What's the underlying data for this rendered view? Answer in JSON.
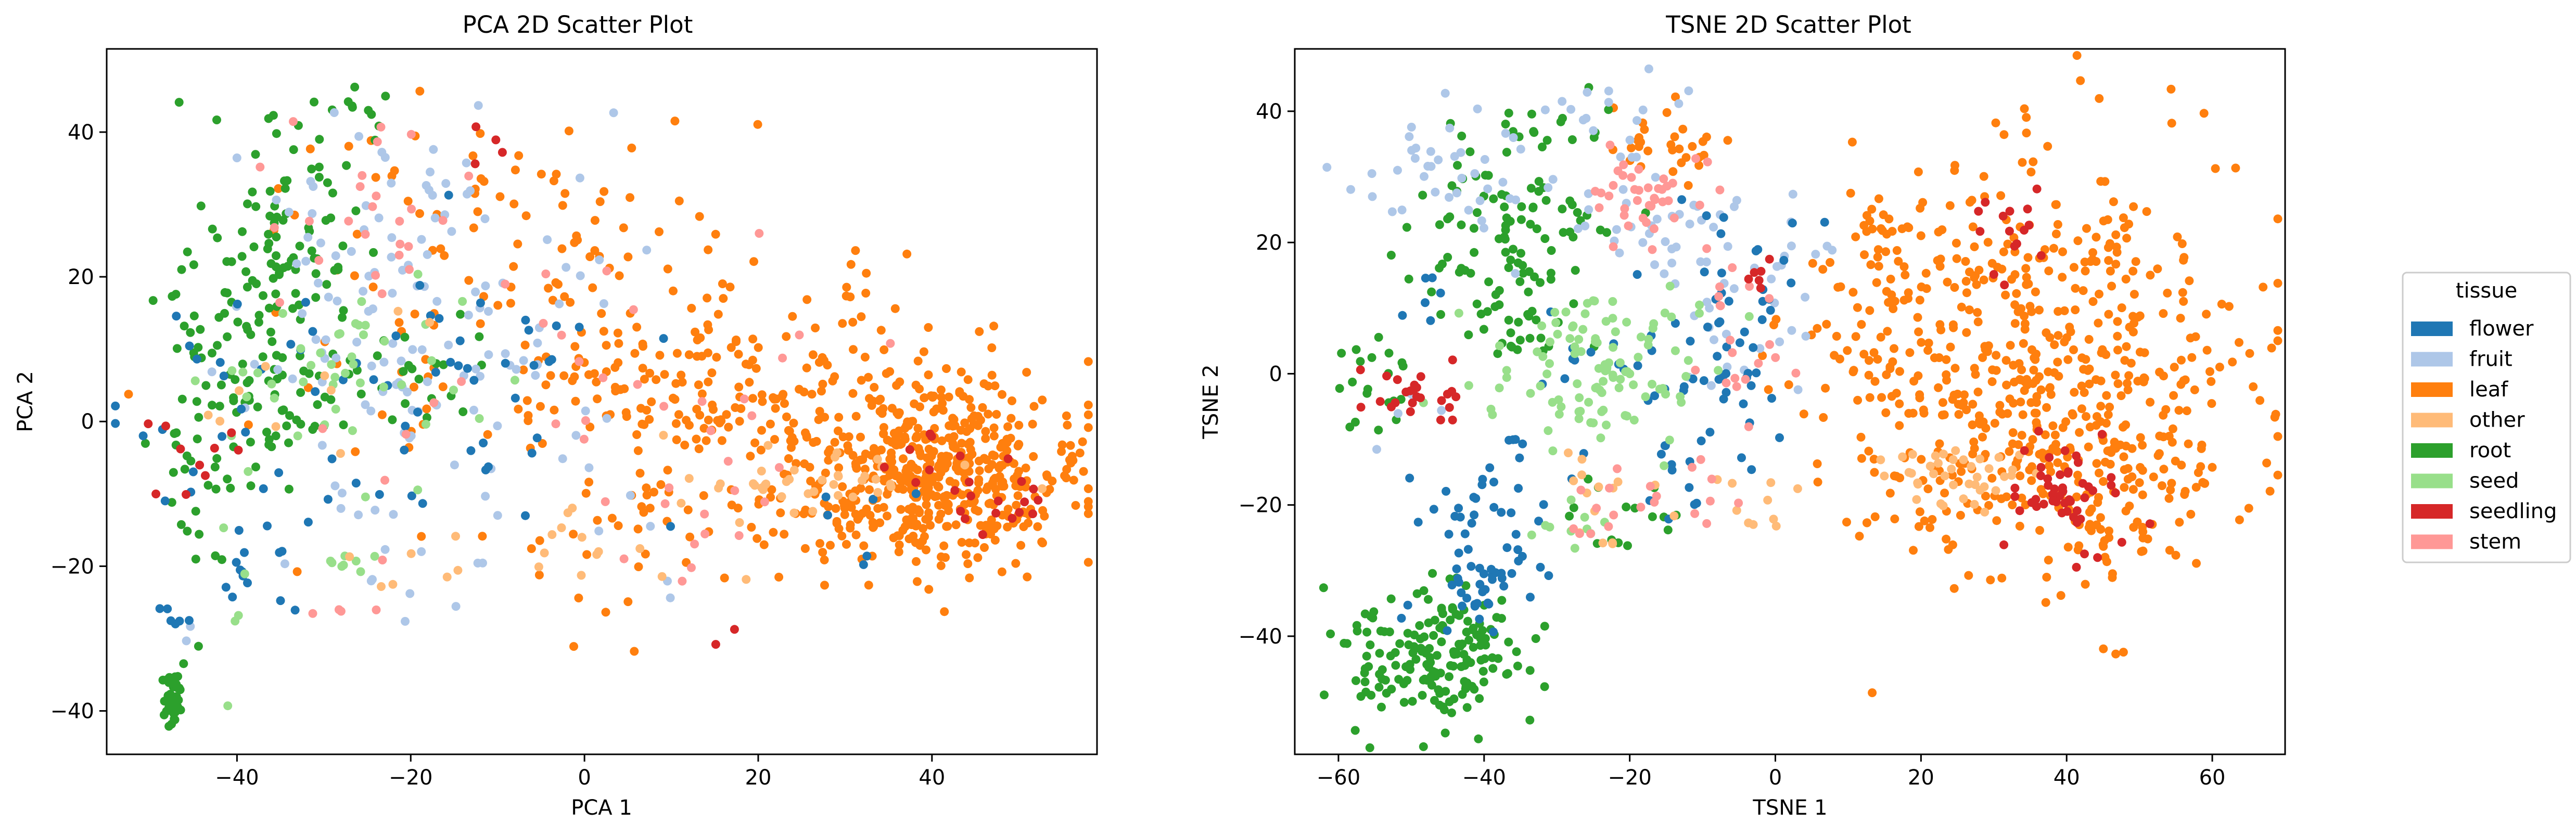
{
  "chart_data": [
    {
      "type": "scatter",
      "title": "PCA 2D Scatter Plot",
      "xlabel": "PCA 1",
      "ylabel": "PCA 2",
      "xlim": [
        -55,
        59
      ],
      "ylim": [
        -46,
        51.5
      ],
      "xticks": [
        -40,
        -20,
        0,
        20,
        40
      ],
      "yticks": [
        -40,
        -20,
        0,
        20,
        40
      ],
      "xtick_labels": [
        "−40",
        "−20",
        "0",
        "20",
        "40"
      ],
      "ytick_labels": [
        "−40",
        "−20",
        "0",
        "20",
        "40"
      ],
      "grid": false,
      "series": [
        {
          "name": "flower",
          "clusters": [
            [
              -40,
              -20,
              2.5,
              2.5,
              12
            ],
            [
              -47,
              -27,
              1,
              2,
              6
            ],
            [
              -25,
              0,
              12,
              10,
              40
            ],
            [
              -10,
              10,
              8,
              10,
              20
            ],
            [
              -42,
              5,
              4,
              10,
              10
            ],
            [
              40,
              -10,
              8,
              6,
              6
            ]
          ]
        },
        {
          "name": "fruit",
          "clusters": [
            [
              -25,
              28,
              7,
              10,
              45
            ],
            [
              -15,
              10,
              10,
              8,
              40
            ],
            [
              -5,
              20,
              8,
              10,
              20
            ],
            [
              -30,
              0,
              8,
              10,
              20
            ],
            [
              -20,
              -18,
              8,
              4,
              12
            ],
            [
              5,
              -5,
              8,
              6,
              10
            ],
            [
              -46,
              -29,
              1,
              1,
              2
            ]
          ]
        },
        {
          "name": "leaf",
          "clusters": [
            [
              40,
              -8,
              8,
              6,
              450
            ],
            [
              25,
              0,
              15,
              8,
              200
            ],
            [
              5,
              10,
              18,
              12,
              150
            ],
            [
              -5,
              30,
              10,
              8,
              30
            ],
            [
              10,
              -15,
              15,
              6,
              40
            ],
            [
              -20,
              30,
              8,
              8,
              15
            ]
          ]
        },
        {
          "name": "other",
          "clusters": [
            [
              25,
              -8,
              8,
              3,
              40
            ],
            [
              -5,
              -18,
              12,
              4,
              20
            ],
            [
              -30,
              3,
              8,
              5,
              10
            ]
          ]
        },
        {
          "name": "root",
          "clusters": [
            [
              -47.5,
              -38,
              0.5,
              2.5,
              40
            ],
            [
              -38,
              12,
              6,
              12,
              120
            ],
            [
              -35,
              33,
              4,
              8,
              40
            ],
            [
              -45,
              -5,
              2,
              10,
              30
            ],
            [
              -20,
              5,
              8,
              6,
              30
            ],
            [
              -25,
              42,
              4,
              2,
              8
            ]
          ]
        },
        {
          "name": "seed",
          "clusters": [
            [
              -30,
              5,
              8,
              6,
              30
            ],
            [
              -28,
              -20,
              2,
              1,
              8
            ],
            [
              -22,
              8,
              5,
              5,
              15
            ],
            [
              -40,
              -28,
              2,
              6,
              5
            ]
          ]
        },
        {
          "name": "seedling",
          "clusters": [
            [
              47,
              -12,
              3,
              2,
              15
            ],
            [
              38,
              -5,
              4,
              3,
              8
            ],
            [
              -45,
              -3,
              3,
              3,
              10
            ],
            [
              -12,
              38,
              5,
              3,
              4
            ],
            [
              15,
              -30,
              3,
              1,
              2
            ]
          ]
        },
        {
          "name": "stem",
          "clusters": [
            [
              -25,
              30,
              6,
              6,
              20
            ],
            [
              0,
              10,
              18,
              10,
              30
            ],
            [
              10,
              -10,
              10,
              8,
              15
            ],
            [
              -30,
              -25,
              5,
              2,
              5
            ]
          ]
        }
      ]
    },
    {
      "type": "scatter",
      "title": "TSNE 2D Scatter Plot",
      "xlabel": "TSNE 1",
      "ylabel": "TSNE 2",
      "xlim": [
        -66,
        70
      ],
      "ylim": [
        -58,
        49.5
      ],
      "xticks": [
        -60,
        -40,
        -20,
        0,
        20,
        40,
        60
      ],
      "yticks": [
        -40,
        -20,
        0,
        20,
        40
      ],
      "xtick_labels": [
        "−60",
        "−40",
        "−20",
        "0",
        "20",
        "40",
        "60"
      ],
      "ytick_labels": [
        "−40",
        "−20",
        "0",
        "20",
        "40"
      ],
      "grid": false,
      "series": [
        {
          "name": "flower",
          "clusters": [
            [
              -40,
              -25,
              4,
              8,
              70
            ],
            [
              -7,
              5,
              5,
              10,
              50
            ],
            [
              -22,
              0,
              8,
              6,
              20
            ],
            [
              -48,
              12,
              2,
              3,
              6
            ],
            [
              -10,
              -15,
              5,
              4,
              10
            ]
          ]
        },
        {
          "name": "fruit",
          "clusters": [
            [
              -45,
              30,
              6,
              5,
              40
            ],
            [
              -22,
              38,
              4,
              5,
              20
            ],
            [
              -12,
              20,
              10,
              5,
              40
            ],
            [
              -5,
              10,
              5,
              8,
              25
            ],
            [
              -50,
              -5,
              3,
              3,
              5
            ]
          ]
        },
        {
          "name": "leaf",
          "clusters": [
            [
              35,
              0,
              15,
              15,
              600
            ],
            [
              -15,
              35,
              4,
              3,
              30
            ],
            [
              15,
              20,
              4,
              4,
              30
            ],
            [
              48,
              -15,
              8,
              6,
              60
            ]
          ]
        },
        {
          "name": "other",
          "clusters": [
            [
              25,
              -15,
              6,
              3,
              40
            ],
            [
              -25,
              -20,
              4,
              4,
              15
            ],
            [
              -5,
              -20,
              4,
              3,
              10
            ]
          ]
        },
        {
          "name": "root",
          "clusters": [
            [
              -47,
              -43,
              6,
              5,
              180
            ],
            [
              -40,
              20,
              6,
              8,
              70
            ],
            [
              -30,
              20,
              5,
              5,
              30
            ],
            [
              -55,
              -3,
              3,
              5,
              20
            ],
            [
              -30,
              38,
              4,
              3,
              15
            ],
            [
              -20,
              -20,
              5,
              5,
              15
            ],
            [
              -35,
              5,
              4,
              3,
              15
            ]
          ]
        },
        {
          "name": "seed",
          "clusters": [
            [
              -25,
              2,
              8,
              7,
              110
            ],
            [
              -28,
              -22,
              3,
              3,
              10
            ]
          ]
        },
        {
          "name": "seedling",
          "clusters": [
            [
              -50,
              -3,
              3,
              2,
              25
            ],
            [
              40,
              -20,
              4,
              5,
              50
            ],
            [
              32,
              22,
              3,
              4,
              15
            ],
            [
              -3,
              15,
              2,
              2,
              6
            ]
          ]
        },
        {
          "name": "stem",
          "clusters": [
            [
              -18,
              28,
              4,
              4,
              40
            ],
            [
              -5,
              5,
              5,
              8,
              20
            ],
            [
              -12,
              -18,
              5,
              3,
              15
            ],
            [
              -27,
              -25,
              2,
              2,
              5
            ]
          ]
        }
      ]
    }
  ],
  "legend": {
    "title": "tissue",
    "placement": "right of plots",
    "entries": [
      {
        "label": "flower",
        "color": "#1f77b4"
      },
      {
        "label": "fruit",
        "color": "#aec7e8"
      },
      {
        "label": "leaf",
        "color": "#ff7f0e"
      },
      {
        "label": "other",
        "color": "#ffbb78"
      },
      {
        "label": "root",
        "color": "#2ca02c"
      },
      {
        "label": "seed",
        "color": "#98df8a"
      },
      {
        "label": "seedling",
        "color": "#d62728"
      },
      {
        "label": "stem",
        "color": "#ff9896"
      }
    ]
  },
  "draw_order": [
    "leaf",
    "root",
    "fruit",
    "flower",
    "seed",
    "other",
    "stem",
    "seedling"
  ]
}
